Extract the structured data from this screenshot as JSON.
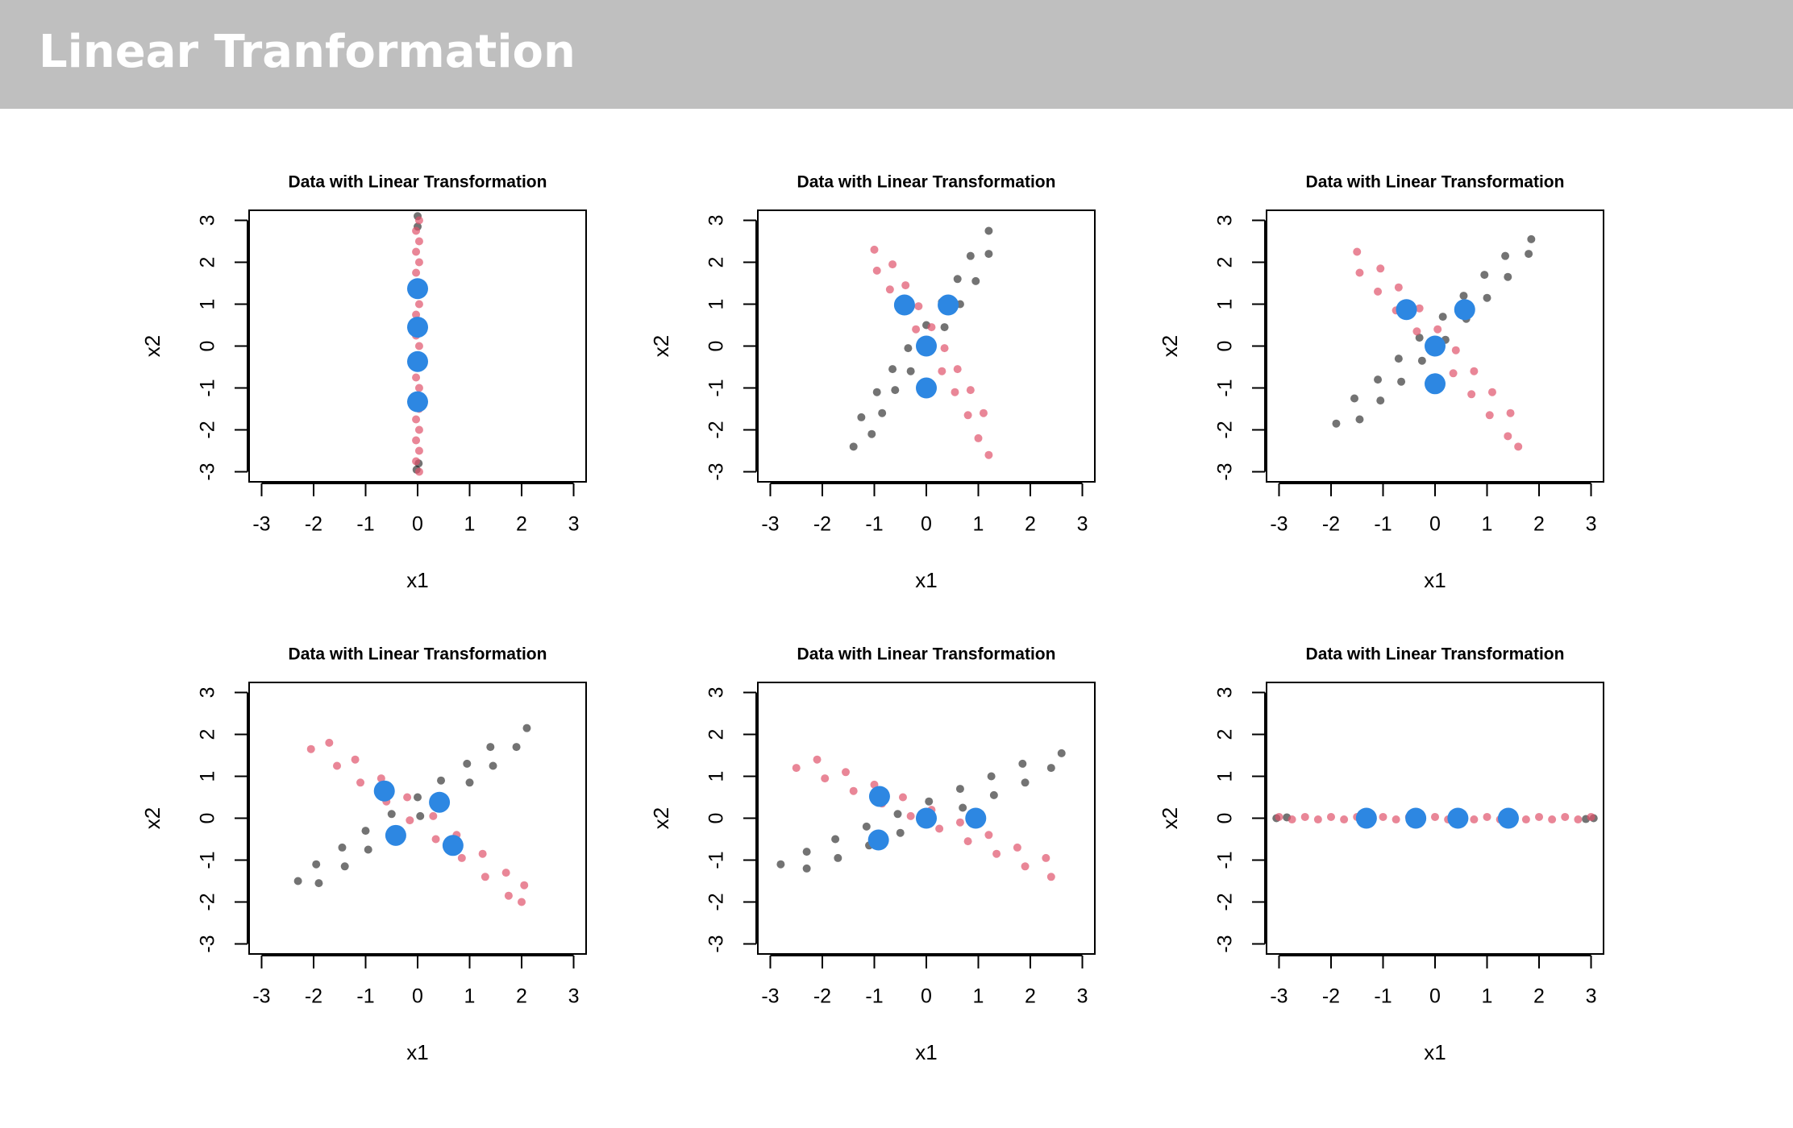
{
  "header": {
    "title": "Linear Tranformation"
  },
  "chart_data": [
    {
      "type": "scatter",
      "title": "Data with Linear Transformation",
      "xlabel": "x1",
      "ylabel": "x2",
      "xlim": [
        -3.24,
        3.24
      ],
      "ylim": [
        -3.24,
        3.24
      ],
      "xticks": [
        -3,
        -2,
        -1,
        0,
        1,
        2,
        3
      ],
      "yticks": [
        -3,
        -2,
        -1,
        0,
        1,
        2,
        3
      ],
      "series": [
        {
          "color": "rgba(0,0,0,0.55)",
          "x": [
            0,
            0,
            0.02,
            -0.02
          ],
          "values": [
            3.1,
            2.85,
            -2.8,
            -2.95
          ]
        },
        {
          "color": "rgba(223,83,107,0.7)",
          "x": [
            0.03,
            -0.03,
            0.03,
            -0.03,
            0.03,
            -0.03,
            0.03,
            -0.03,
            0.03,
            -0.03,
            0.03,
            -0.03,
            0.03,
            -0.03,
            0.03,
            -0.03,
            0.03,
            -0.03,
            0.03,
            -0.03,
            0.03,
            -0.03,
            0.03,
            -0.03,
            0.03
          ],
          "values": [
            -3.0,
            -2.75,
            -2.5,
            -2.25,
            -2.0,
            -1.75,
            -1.5,
            -1.25,
            -1.0,
            -0.75,
            -0.5,
            -0.25,
            0,
            0.25,
            0.5,
            0.75,
            1.0,
            1.25,
            1.5,
            1.75,
            2.0,
            2.25,
            2.5,
            2.75,
            3.0
          ]
        },
        {
          "color": "#2D87E2",
          "x": [
            0,
            0,
            0,
            0
          ],
          "values": [
            1.37,
            0.45,
            -0.37,
            -1.33
          ]
        }
      ]
    },
    {
      "type": "scatter",
      "title": "Data with Linear Transformation",
      "xlabel": "x1",
      "ylabel": "x2",
      "xlim": [
        -3.24,
        3.24
      ],
      "ylim": [
        -3.24,
        3.24
      ],
      "xticks": [
        -3,
        -2,
        -1,
        0,
        1,
        2,
        3
      ],
      "yticks": [
        -3,
        -2,
        -1,
        0,
        1,
        2,
        3
      ],
      "series": [
        {
          "color": "rgba(0,0,0,0.55)",
          "x": [
            -1.4,
            -1.05,
            -1.25,
            -0.85,
            -0.95,
            -0.6,
            -0.65,
            -0.3,
            -0.35,
            0.05,
            0.0,
            0.35,
            0.3,
            0.65,
            0.6,
            0.95,
            0.85,
            1.2,
            1.2
          ],
          "values": [
            -2.4,
            -2.1,
            -1.7,
            -1.6,
            -1.1,
            -1.05,
            -0.55,
            -0.6,
            -0.05,
            -0.1,
            0.5,
            0.45,
            1.05,
            1.0,
            1.6,
            1.55,
            2.15,
            2.2,
            2.75
          ]
        },
        {
          "color": "rgba(223,83,107,0.7)",
          "x": [
            -1.0,
            -0.95,
            -0.65,
            -0.7,
            -0.4,
            -0.45,
            -0.15,
            -0.2,
            0.1,
            0.05,
            0.35,
            0.3,
            0.6,
            0.55,
            0.85,
            0.8,
            1.1,
            1.0,
            1.2
          ],
          "values": [
            2.3,
            1.8,
            1.95,
            1.35,
            1.45,
            0.9,
            0.95,
            0.4,
            0.45,
            -0.1,
            -0.05,
            -0.6,
            -0.55,
            -1.1,
            -1.05,
            -1.65,
            -1.6,
            -2.2,
            -2.6
          ]
        },
        {
          "color": "#2D87E2",
          "x": [
            -0.42,
            0.42,
            0,
            0
          ],
          "values": [
            0.98,
            0.98,
            0,
            -1.0
          ]
        }
      ]
    },
    {
      "type": "scatter",
      "title": "Data with Linear Transformation",
      "xlabel": "x1",
      "ylabel": "x2",
      "xlim": [
        -3.24,
        3.24
      ],
      "ylim": [
        -3.24,
        3.24
      ],
      "xticks": [
        -3,
        -2,
        -1,
        0,
        1,
        2,
        3
      ],
      "yticks": [
        -3,
        -2,
        -1,
        0,
        1,
        2,
        3
      ],
      "series": [
        {
          "color": "rgba(0,0,0,0.55)",
          "x": [
            -1.9,
            -1.45,
            -1.55,
            -1.05,
            -1.1,
            -0.65,
            -0.7,
            -0.25,
            -0.3,
            0.2,
            0.15,
            0.6,
            0.55,
            1.0,
            0.95,
            1.4,
            1.35,
            1.8,
            1.85
          ],
          "values": [
            -1.85,
            -1.75,
            -1.25,
            -1.3,
            -0.8,
            -0.85,
            -0.3,
            -0.35,
            0.2,
            0.15,
            0.7,
            0.65,
            1.2,
            1.15,
            1.7,
            1.65,
            2.15,
            2.2,
            2.55
          ]
        },
        {
          "color": "rgba(223,83,107,0.7)",
          "x": [
            -1.5,
            -1.45,
            -1.05,
            -1.1,
            -0.7,
            -0.75,
            -0.3,
            -0.35,
            0.05,
            0.0,
            0.4,
            0.35,
            0.75,
            0.7,
            1.1,
            1.05,
            1.45,
            1.4,
            1.6
          ],
          "values": [
            2.25,
            1.75,
            1.85,
            1.3,
            1.4,
            0.85,
            0.9,
            0.35,
            0.4,
            -0.15,
            -0.1,
            -0.65,
            -0.6,
            -1.15,
            -1.1,
            -1.65,
            -1.6,
            -2.15,
            -2.4
          ]
        },
        {
          "color": "#2D87E2",
          "x": [
            -0.55,
            0.57,
            0,
            0
          ],
          "values": [
            0.87,
            0.87,
            0,
            -0.9
          ]
        }
      ]
    },
    {
      "type": "scatter",
      "title": "Data with Linear Transformation",
      "xlabel": "x1",
      "ylabel": "x2",
      "xlim": [
        -3.24,
        3.24
      ],
      "ylim": [
        -3.24,
        3.24
      ],
      "xticks": [
        -3,
        -2,
        -1,
        0,
        1,
        2,
        3
      ],
      "yticks": [
        -3,
        -2,
        -1,
        0,
        1,
        2,
        3
      ],
      "series": [
        {
          "color": "rgba(0,0,0,0.55)",
          "x": [
            -2.3,
            -1.9,
            -1.95,
            -1.4,
            -1.45,
            -0.95,
            -1.0,
            -0.45,
            -0.5,
            0.05,
            0.0,
            0.5,
            0.45,
            1.0,
            0.95,
            1.45,
            1.4,
            1.9,
            2.1
          ],
          "values": [
            -1.5,
            -1.55,
            -1.1,
            -1.15,
            -0.7,
            -0.75,
            -0.3,
            -0.35,
            0.1,
            0.05,
            0.5,
            0.45,
            0.9,
            0.85,
            1.3,
            1.25,
            1.7,
            1.7,
            2.15
          ]
        },
        {
          "color": "rgba(223,83,107,0.7)",
          "x": [
            -2.05,
            -1.7,
            -1.55,
            -1.2,
            -1.1,
            -0.7,
            -0.6,
            -0.2,
            -0.15,
            0.3,
            0.35,
            0.75,
            0.85,
            1.25,
            1.3,
            1.7,
            1.75,
            2.05,
            2.0
          ],
          "values": [
            1.65,
            1.8,
            1.25,
            1.4,
            0.85,
            0.95,
            0.4,
            0.5,
            -0.05,
            0.05,
            -0.5,
            -0.4,
            -0.95,
            -0.85,
            -1.4,
            -1.3,
            -1.85,
            -1.6,
            -2.0
          ]
        },
        {
          "color": "#2D87E2",
          "x": [
            -0.64,
            0.42,
            -0.42,
            0.68
          ],
          "values": [
            0.65,
            0.38,
            -0.41,
            -0.65
          ]
        }
      ]
    },
    {
      "type": "scatter",
      "title": "Data with Linear Transformation",
      "xlabel": "x1",
      "ylabel": "x2",
      "xlim": [
        -3.24,
        3.24
      ],
      "ylim": [
        -3.24,
        3.24
      ],
      "xticks": [
        -3,
        -2,
        -1,
        0,
        1,
        2,
        3
      ],
      "yticks": [
        -3,
        -2,
        -1,
        0,
        1,
        2,
        3
      ],
      "series": [
        {
          "color": "rgba(0,0,0,0.55)",
          "x": [
            -2.8,
            -2.3,
            -2.3,
            -1.7,
            -1.75,
            -1.1,
            -1.15,
            -0.5,
            -0.55,
            0.1,
            0.05,
            0.7,
            0.65,
            1.3,
            1.25,
            1.9,
            1.85,
            2.4,
            2.6
          ],
          "values": [
            -1.1,
            -1.2,
            -0.8,
            -0.95,
            -0.5,
            -0.65,
            -0.2,
            -0.35,
            0.1,
            -0.05,
            0.4,
            0.25,
            0.7,
            0.55,
            1.0,
            0.85,
            1.3,
            1.2,
            1.55
          ]
        },
        {
          "color": "rgba(223,83,107,0.7)",
          "x": [
            -2.5,
            -2.1,
            -1.95,
            -1.55,
            -1.4,
            -1.0,
            -0.85,
            -0.45,
            -0.3,
            0.1,
            0.25,
            0.65,
            0.8,
            1.2,
            1.35,
            1.75,
            1.9,
            2.3,
            2.4
          ],
          "values": [
            1.2,
            1.4,
            0.95,
            1.1,
            0.65,
            0.8,
            0.35,
            0.5,
            0.05,
            0.2,
            -0.25,
            -0.1,
            -0.55,
            -0.4,
            -0.85,
            -0.7,
            -1.15,
            -0.95,
            -1.4
          ]
        },
        {
          "color": "#2D87E2",
          "x": [
            -0.9,
            0,
            0.95,
            -0.92
          ],
          "values": [
            0.52,
            0,
            0,
            -0.52
          ]
        }
      ]
    },
    {
      "type": "scatter",
      "title": "Data with Linear Transformation",
      "xlabel": "x1",
      "ylabel": "x2",
      "xlim": [
        -3.24,
        3.24
      ],
      "ylim": [
        -3.24,
        3.24
      ],
      "xticks": [
        -3,
        -2,
        -1,
        0,
        1,
        2,
        3
      ],
      "yticks": [
        -3,
        -2,
        -1,
        0,
        1,
        2,
        3
      ],
      "series": [
        {
          "color": "rgba(0,0,0,0.55)",
          "x": [
            -3.05,
            -2.85,
            2.9,
            3.05
          ],
          "values": [
            0,
            0.02,
            -0.02,
            0
          ]
        },
        {
          "color": "rgba(223,83,107,0.7)",
          "x": [
            -3.0,
            -2.75,
            -2.5,
            -2.25,
            -2.0,
            -1.75,
            -1.5,
            -1.25,
            -1.0,
            -0.75,
            -0.5,
            -0.25,
            0,
            0.25,
            0.5,
            0.75,
            1.0,
            1.25,
            1.5,
            1.75,
            2.0,
            2.25,
            2.5,
            2.75,
            3.0
          ],
          "values": [
            0.03,
            -0.03,
            0.03,
            -0.03,
            0.03,
            -0.03,
            0.03,
            -0.03,
            0.03,
            -0.03,
            0.03,
            -0.03,
            0.03,
            -0.03,
            0.03,
            -0.03,
            0.03,
            -0.03,
            0.03,
            -0.03,
            0.03,
            -0.03,
            0.03,
            -0.03,
            0.03
          ]
        },
        {
          "color": "#2D87E2",
          "x": [
            -1.32,
            -0.37,
            0.44,
            1.41
          ],
          "values": [
            0,
            0,
            0,
            0
          ]
        }
      ]
    }
  ]
}
